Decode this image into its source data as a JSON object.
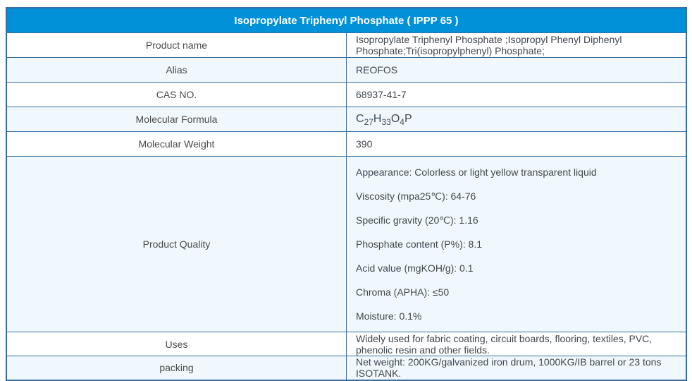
{
  "colors": {
    "header_bg": "#0191d9",
    "header_text": "#ffffff",
    "border": "#376da0",
    "zebra_row_bg": "#f0f8fd",
    "body_text": "#40474e"
  },
  "table": {
    "title": "Isopropylate Triphenyl Phosphate ( IPPP 65 )",
    "rows": [
      {
        "label": "Product name",
        "value": "Isopropylate Triphenyl Phosphate ;Isopropyl Phenyl Diphenyl Phosphate;Tri(isopropylphenyl) Phosphate;"
      },
      {
        "label": "Alias",
        "value": "REOFOS"
      },
      {
        "label": "CAS NO.",
        "value": "68937-41-7"
      },
      {
        "label": "Molecular Formula",
        "formula_text": "C27H33O4P",
        "formula_segments": [
          {
            "text": "C",
            "sub": false
          },
          {
            "text": "27",
            "sub": true
          },
          {
            "text": "H",
            "sub": false
          },
          {
            "text": "33",
            "sub": true
          },
          {
            "text": "O",
            "sub": false
          },
          {
            "text": "4",
            "sub": true
          },
          {
            "text": "P",
            "sub": false
          }
        ]
      },
      {
        "label": "Molecular Weight",
        "value": "390"
      },
      {
        "label": "Product Quality",
        "lines": [
          "Appearance: Colorless or light yellow transparent liquid",
          "Viscosity (mpa25℃): 64-76",
          "Specific gravity (20℃): 1.16",
          "Phosphate content (P%): 8.1",
          "Acid value (mgKOH/g): 0.1",
          "Chroma (APHA): ≤50",
          "Moisture: 0.1%"
        ]
      },
      {
        "label": "Uses",
        "value": "Widely used for fabric coating, circuit boards, flooring, textiles, PVC, phenolic resin and other fields."
      },
      {
        "label": "packing",
        "value": "Net weight: 200KG/galvanized iron drum, 1000KG/IB barrel or 23 tons ISOTANK."
      }
    ]
  }
}
